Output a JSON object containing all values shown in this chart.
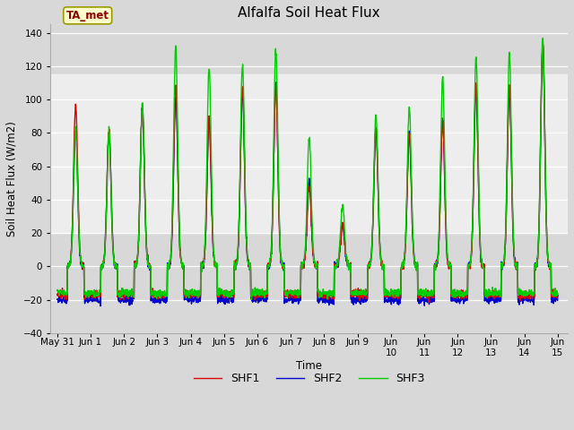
{
  "title": "Alfalfa Soil Heat Flux",
  "ylabel": "Soil Heat Flux (W/m2)",
  "xlabel": "Time",
  "ylim": [
    -40,
    145
  ],
  "yticks": [
    -40,
    -20,
    0,
    20,
    40,
    60,
    80,
    100,
    120,
    140
  ],
  "background_color": "#d8d8d8",
  "plot_bg_color": "#d8d8d8",
  "shaded_region_low": 20,
  "shaded_region_high": 115,
  "legend_box_label": "TA_met",
  "legend_box_facecolor": "#ffffcc",
  "legend_box_edgecolor": "#999900",
  "legend_box_text_color": "#8b0000",
  "line_colors": {
    "SHF1": "#dd0000",
    "SHF2": "#0000cc",
    "SHF3": "#00cc00"
  },
  "line_width": 1.0,
  "xtick_labels": [
    "May 31",
    "Jun 1",
    "Jun 2",
    "Jun 3",
    "Jun 4",
    "Jun 5",
    "Jun 6",
    "Jun 7",
    "Jun 8",
    "Jun 9",
    "Jun\n10",
    "Jun\n11",
    "Jun\n12",
    "Jun\n13",
    "Jun\n14",
    "Jun\n15"
  ],
  "xtick_positions": [
    0,
    1,
    2,
    3,
    4,
    5,
    6,
    7,
    8,
    9,
    10,
    11,
    12,
    13,
    14,
    15
  ],
  "day_peaks_shf1": [
    0.97,
    0.82,
    0.96,
    1.08,
    0.88,
    1.07,
    1.08,
    0.48,
    0.25,
    0.83,
    0.8,
    0.87,
    1.09,
    1.08,
    1.35
  ],
  "day_peaks_shf2": [
    0.82,
    0.8,
    0.95,
    1.01,
    0.88,
    1.05,
    1.1,
    0.52,
    0.25,
    0.82,
    0.8,
    0.88,
    1.07,
    1.09,
    1.35
  ],
  "day_peaks_shf3": [
    0.83,
    0.82,
    0.97,
    1.32,
    1.19,
    1.21,
    1.3,
    0.77,
    0.37,
    0.91,
    0.96,
    1.13,
    1.25,
    1.27,
    1.36
  ]
}
